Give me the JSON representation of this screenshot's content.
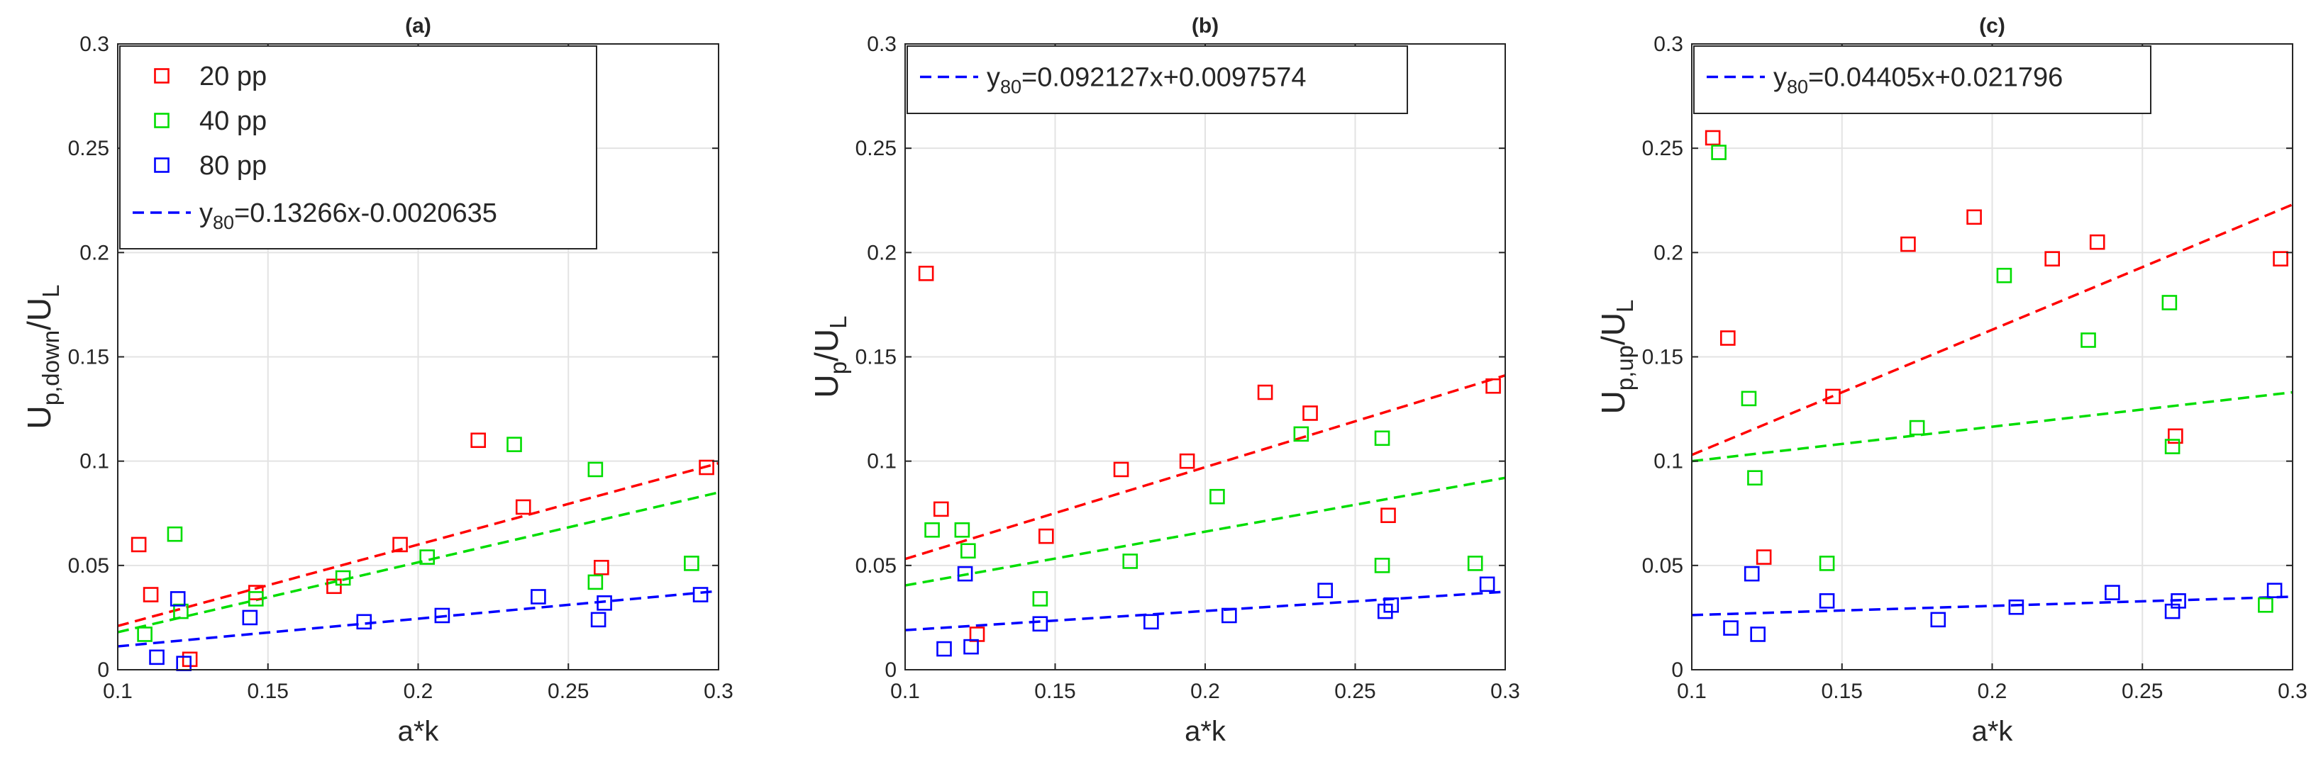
{
  "chart_data": [
    {
      "type": "scatter",
      "title": "(a)",
      "xlabel": "a*k",
      "ylabel_main": "U",
      "ylabel_sub": "p,down",
      "ylabel_sep": "/U",
      "ylabel_sub2": "L",
      "xlim": [
        0.1,
        0.3
      ],
      "ylim": [
        0,
        0.3
      ],
      "xticks": [
        "0.1",
        "0.15",
        "0.2",
        "0.25",
        "0.3"
      ],
      "yticks": [
        "0",
        "0.05",
        "0.1",
        "0.15",
        "0.2",
        "0.25",
        "0.3"
      ],
      "grid": true,
      "legend_position": "top-left",
      "series": [
        {
          "name": "20 pp",
          "color": "#ff0000",
          "points": [
            [
              0.107,
              0.06
            ],
            [
              0.111,
              0.036
            ],
            [
              0.124,
              0.005
            ],
            [
              0.146,
              0.037
            ],
            [
              0.172,
              0.04
            ],
            [
              0.194,
              0.06
            ],
            [
              0.22,
              0.11
            ],
            [
              0.235,
              0.078
            ],
            [
              0.261,
              0.049
            ],
            [
              0.296,
              0.097
            ]
          ]
        },
        {
          "name": "40 pp",
          "color": "#00dd00",
          "points": [
            [
              0.109,
              0.017
            ],
            [
              0.119,
              0.065
            ],
            [
              0.121,
              0.028
            ],
            [
              0.146,
              0.034
            ],
            [
              0.175,
              0.044
            ],
            [
              0.203,
              0.054
            ],
            [
              0.232,
              0.108
            ],
            [
              0.259,
              0.096
            ],
            [
              0.259,
              0.042
            ],
            [
              0.291,
              0.051
            ]
          ]
        },
        {
          "name": "80 pp",
          "color": "#0000ff",
          "points": [
            [
              0.113,
              0.006
            ],
            [
              0.12,
              0.034
            ],
            [
              0.122,
              0.003
            ],
            [
              0.144,
              0.025
            ],
            [
              0.182,
              0.023
            ],
            [
              0.208,
              0.026
            ],
            [
              0.24,
              0.035
            ],
            [
              0.26,
              0.024
            ],
            [
              0.262,
              0.032
            ],
            [
              0.294,
              0.036
            ]
          ]
        }
      ],
      "fits": [
        {
          "color": "#ff0000",
          "slope": 0.39,
          "intercept": -0.018
        },
        {
          "color": "#00dd00",
          "slope": 0.335,
          "intercept": -0.0155
        },
        {
          "color": "#0000ff",
          "slope": 0.13266,
          "intercept": -0.0020635
        }
      ],
      "legend_fit": {
        "color": "#0000ff",
        "main": "y",
        "sub": "80",
        "rest": "=0.13266x-0.0020635"
      }
    },
    {
      "type": "scatter",
      "title": "(b)",
      "xlabel": "a*k",
      "ylabel_main": "U",
      "ylabel_sub": "p",
      "ylabel_sep": "/U",
      "ylabel_sub2": "L",
      "xlim": [
        0.1,
        0.3
      ],
      "ylim": [
        0,
        0.3
      ],
      "xticks": [
        "0.1",
        "0.15",
        "0.2",
        "0.25",
        "0.3"
      ],
      "yticks": [
        "0",
        "0.05",
        "0.1",
        "0.15",
        "0.2",
        "0.25",
        "0.3"
      ],
      "grid": true,
      "legend_position": "top-left",
      "series": [
        {
          "name": "20 pp",
          "color": "#ff0000",
          "points": [
            [
              0.107,
              0.19
            ],
            [
              0.112,
              0.077
            ],
            [
              0.124,
              0.017
            ],
            [
              0.147,
              0.064
            ],
            [
              0.172,
              0.096
            ],
            [
              0.194,
              0.1
            ],
            [
              0.22,
              0.133
            ],
            [
              0.235,
              0.123
            ],
            [
              0.261,
              0.074
            ],
            [
              0.296,
              0.136
            ]
          ]
        },
        {
          "name": "40 pp",
          "color": "#00dd00",
          "points": [
            [
              0.109,
              0.067
            ],
            [
              0.119,
              0.067
            ],
            [
              0.121,
              0.057
            ],
            [
              0.145,
              0.034
            ],
            [
              0.175,
              0.052
            ],
            [
              0.204,
              0.083
            ],
            [
              0.232,
              0.113
            ],
            [
              0.259,
              0.111
            ],
            [
              0.259,
              0.05
            ],
            [
              0.29,
              0.051
            ]
          ]
        },
        {
          "name": "80 pp",
          "color": "#0000ff",
          "points": [
            [
              0.113,
              0.01
            ],
            [
              0.12,
              0.046
            ],
            [
              0.122,
              0.011
            ],
            [
              0.145,
              0.022
            ],
            [
              0.182,
              0.023
            ],
            [
              0.208,
              0.026
            ],
            [
              0.24,
              0.038
            ],
            [
              0.26,
              0.028
            ],
            [
              0.262,
              0.031
            ],
            [
              0.294,
              0.041
            ]
          ]
        }
      ],
      "fits": [
        {
          "color": "#ff0000",
          "slope": 0.44,
          "intercept": 0.0091
        },
        {
          "color": "#00dd00",
          "slope": 0.258,
          "intercept": 0.0146
        },
        {
          "color": "#0000ff",
          "slope": 0.092127,
          "intercept": 0.0097574
        }
      ],
      "legend_fit": {
        "color": "#0000ff",
        "main": "y",
        "sub": "80",
        "rest": "=0.092127x+0.0097574"
      }
    },
    {
      "type": "scatter",
      "title": "(c)",
      "xlabel": "a*k",
      "ylabel_main": "U",
      "ylabel_sub": "p,up",
      "ylabel_sep": "/U",
      "ylabel_sub2": "L",
      "xlim": [
        0.1,
        0.3
      ],
      "ylim": [
        0,
        0.3
      ],
      "xticks": [
        "0.1",
        "0.15",
        "0.2",
        "0.25",
        "0.3"
      ],
      "yticks": [
        "0",
        "0.05",
        "0.1",
        "0.15",
        "0.2",
        "0.25",
        "0.3"
      ],
      "grid": true,
      "legend_position": "top-left",
      "series": [
        {
          "name": "20 pp",
          "color": "#ff0000",
          "points": [
            [
              0.107,
              0.255
            ],
            [
              0.112,
              0.159
            ],
            [
              0.124,
              0.054
            ],
            [
              0.147,
              0.131
            ],
            [
              0.172,
              0.204
            ],
            [
              0.194,
              0.217
            ],
            [
              0.22,
              0.197
            ],
            [
              0.235,
              0.205
            ],
            [
              0.261,
              0.112
            ],
            [
              0.296,
              0.197
            ]
          ]
        },
        {
          "name": "40 pp",
          "color": "#00dd00",
          "points": [
            [
              0.109,
              0.248
            ],
            [
              0.119,
              0.13
            ],
            [
              0.121,
              0.092
            ],
            [
              0.145,
              0.051
            ],
            [
              0.175,
              0.116
            ],
            [
              0.204,
              0.189
            ],
            [
              0.232,
              0.158
            ],
            [
              0.259,
              0.176
            ],
            [
              0.26,
              0.107
            ],
            [
              0.291,
              0.031
            ]
          ]
        },
        {
          "name": "80 pp",
          "color": "#0000ff",
          "points": [
            [
              0.113,
              0.02
            ],
            [
              0.12,
              0.046
            ],
            [
              0.122,
              0.017
            ],
            [
              0.145,
              0.033
            ],
            [
              0.182,
              0.024
            ],
            [
              0.208,
              0.03
            ],
            [
              0.24,
              0.037
            ],
            [
              0.26,
              0.028
            ],
            [
              0.262,
              0.033
            ],
            [
              0.294,
              0.038
            ]
          ]
        }
      ],
      "fits": [
        {
          "color": "#ff0000",
          "slope": 0.6,
          "intercept": 0.043
        },
        {
          "color": "#00dd00",
          "slope": 0.165,
          "intercept": 0.0835
        },
        {
          "color": "#0000ff",
          "slope": 0.04405,
          "intercept": 0.021796
        }
      ],
      "legend_fit": {
        "color": "#0000ff",
        "main": "y",
        "sub": "80",
        "rest": "=0.04405x+0.021796"
      }
    }
  ]
}
